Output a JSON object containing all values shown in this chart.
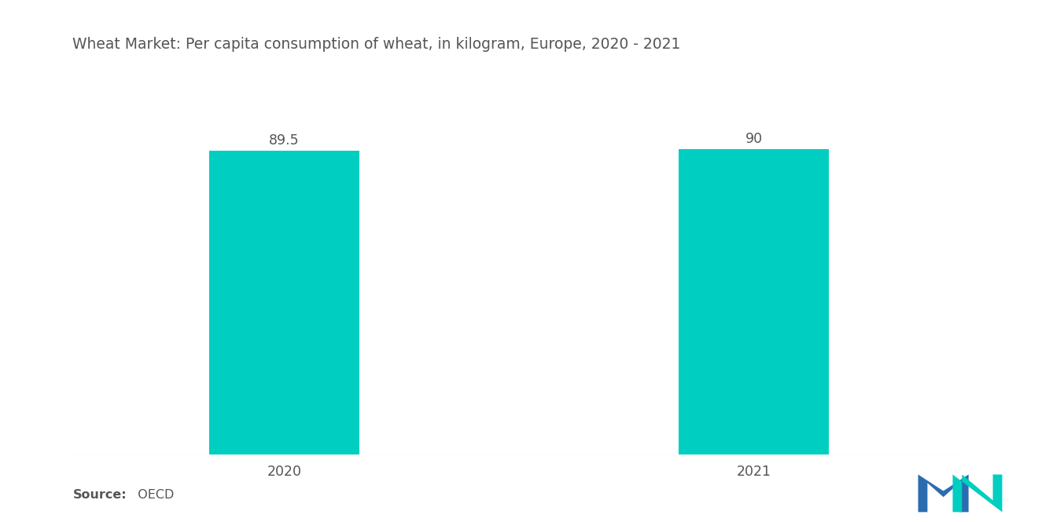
{
  "title": "Wheat Market: Per capita consumption of wheat, in kilogram, Europe, 2020 - 2021",
  "categories": [
    "2020",
    "2021"
  ],
  "values": [
    89.5,
    90
  ],
  "bar_color": "#00CEC0",
  "value_labels": [
    "89.5",
    "90"
  ],
  "ylim": [
    0,
    100
  ],
  "bar_width": 0.32,
  "x_positions": [
    1,
    2
  ],
  "xlim": [
    0.55,
    2.45
  ],
  "source_label": "Source:",
  "source_value": "  OECD",
  "title_fontsize": 13.5,
  "label_fontsize": 12.5,
  "tick_fontsize": 12.5,
  "source_fontsize": 11.5,
  "background_color": "#ffffff",
  "text_color": "#555555"
}
